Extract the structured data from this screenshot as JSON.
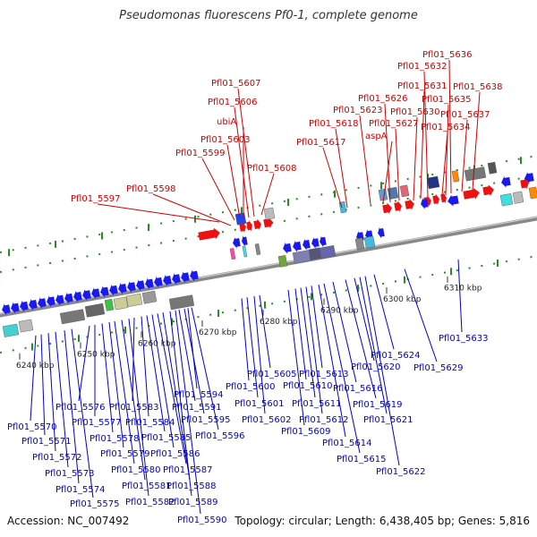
{
  "title": "Pseudomonas fluorescens Pf0-1, complete genome",
  "footer": {
    "accession": "Accession: NC_007492",
    "topology": "Topology: circular; Length: 6,438,405 bp; Genes: 5,816"
  },
  "colors": {
    "forward_label": "#cc0000",
    "reverse_label": "#0000cc",
    "forward_gene": "#ee1111",
    "reverse_gene": "#1a1aee",
    "backbone": "#888888",
    "tick_marks": "#2a8a2a"
  },
  "scale_labels": [
    {
      "text": "6240 kbp"
    },
    {
      "text": "6250 kbp"
    },
    {
      "text": "6260 kbp"
    },
    {
      "text": "6270 kbp"
    },
    {
      "text": "6280 kbp"
    },
    {
      "text": "6290 kbp"
    },
    {
      "text": "6300 kbp"
    },
    {
      "text": "6310 kbp"
    }
  ],
  "forward_labels": [
    "Pfl01_5597",
    "Pfl01_5598",
    "Pfl01_5599",
    "Pfl01_5603",
    "ubiA",
    "Pfl01_5606",
    "Pfl01_5607",
    "Pfl01_5608",
    "Pfl01_5617",
    "Pfl01_5618",
    "Pfl01_5623",
    "aspA",
    "Pfl01_5626",
    "Pfl01_5627",
    "Pfl01_5630",
    "Pfl01_5631",
    "Pfl01_5632",
    "Pfl01_5636",
    "Pfl01_5634",
    "Pfl01_5635",
    "Pfl01_5637",
    "Pfl01_5638"
  ],
  "reverse_labels": [
    "Pfl01_5570",
    "Pfl01_5571",
    "Pfl01_5572",
    "Pfl01_5573",
    "Pfl01_5574",
    "Pfl01_5575",
    "Pfl01_5576",
    "Pfl01_5577",
    "Pfl01_5578",
    "Pfl01_5579",
    "Pfl01_5580",
    "Pfl01_5581",
    "Pfl01_5582",
    "Pfl01_5583",
    "Pfl01_5584",
    "Pfl01_5585",
    "Pfl01_5586",
    "Pfl01_5587",
    "Pfl01_5588",
    "Pfl01_5589",
    "Pfl01_5590",
    "Pfl01_5591",
    "Pfl01_5594",
    "Pfl01_5595",
    "Pfl01_5596",
    "Pfl01_5600",
    "Pfl01_5601",
    "Pfl01_5602",
    "Pfl01_5605",
    "Pfl01_5609",
    "Pfl01_5610",
    "Pfl01_5611",
    "Pfl01_5612",
    "Pfl01_5613",
    "Pfl01_5614",
    "Pfl01_5615",
    "Pfl01_5616",
    "Pfl01_5619",
    "Pfl01_5620",
    "Pfl01_5621",
    "Pfl01_5622",
    "Pfl01_5624",
    "Pfl01_5629",
    "Pfl01_5633"
  ]
}
